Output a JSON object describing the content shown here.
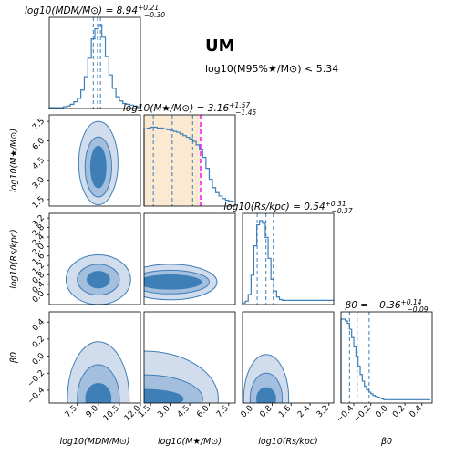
{
  "figure": {
    "label": "UM",
    "constraint": "log10(M95%★/M⊙) < 5.34"
  },
  "colors": {
    "line": "#3d7fb8",
    "fill_light": "#d1dced",
    "fill_mid": "#a4bfde",
    "fill_dark": "#3f7fb7",
    "prior_band": "#fbe9d1",
    "limit_line": "#ff00ff"
  },
  "chart_data": {
    "type": "corner",
    "parameters": [
      {
        "key": "mdm",
        "axis_label": "log10(MDM/M⊙)",
        "title_prefix": "log10(MDM/M⊙)",
        "median": "8.94",
        "err_plus": "+0.21",
        "err_minus": "−0.30",
        "range": [
          5.5,
          12.0
        ],
        "ticks": [
          7.5,
          9.0,
          10.5,
          12.0
        ],
        "tick_labels": [
          "7.5",
          "9.0",
          "10.5",
          "12.0"
        ],
        "quantiles": [
          8.64,
          8.94,
          9.15
        ],
        "hist": {
          "bin_width": 0.25,
          "counts": [
            0.01,
            0.01,
            0.01,
            0.01,
            0.02,
            0.03,
            0.05,
            0.08,
            0.12,
            0.22,
            0.38,
            0.6,
            0.83,
            0.95,
            1.0,
            0.85,
            0.62,
            0.4,
            0.24,
            0.14,
            0.09,
            0.06,
            0.05,
            0.04,
            0.03,
            0.02
          ]
        }
      },
      {
        "key": "mstar",
        "axis_label": "log10(M★/M⊙)",
        "title_prefix": "log10(M★/M⊙)",
        "median": "3.16",
        "err_plus": "+1.57",
        "err_minus": "−1.45",
        "range": [
          1.0,
          8.0
        ],
        "ticks": [
          1.5,
          3.0,
          4.5,
          6.0,
          7.5
        ],
        "tick_labels": [
          "1.5",
          "3.0",
          "4.5",
          "6.0",
          "7.5"
        ],
        "y_ticks": [
          1.5,
          3.0,
          4.5,
          6.0,
          7.5
        ],
        "y_tick_labels": [
          "1.5",
          "3.0",
          "4.5",
          "6.0",
          "7.5"
        ],
        "quantiles": [
          1.71,
          3.16,
          4.73
        ],
        "prior_band": [
          1.0,
          5.34
        ],
        "limit": 5.34,
        "hist": {
          "bin_width": 0.25,
          "counts": [
            0.92,
            0.93,
            0.94,
            0.94,
            0.93,
            0.93,
            0.92,
            0.91,
            0.9,
            0.89,
            0.88,
            0.86,
            0.84,
            0.82,
            0.8,
            0.77,
            0.73,
            0.68,
            0.58,
            0.45,
            0.32,
            0.22,
            0.16,
            0.12,
            0.09,
            0.07,
            0.06,
            0.05
          ]
        }
      },
      {
        "key": "rs",
        "axis_label": "log10(Rs/kpc)",
        "title_prefix": "log10(Rs/kpc)",
        "median": "0.54",
        "err_plus": "+0.31",
        "err_minus": "−0.37",
        "range": [
          -0.45,
          3.4
        ],
        "ticks": [
          0.0,
          0.4,
          0.8,
          1.2,
          1.6,
          2.0,
          2.4,
          2.8,
          3.2
        ],
        "tick_labels": [
          "0.0",
          "0.4",
          "0.8",
          "1.2",
          "1.6",
          "2.0",
          "2.4",
          "2.8",
          "3.2"
        ],
        "x_ticks": [
          0.0,
          0.8,
          1.6,
          2.4,
          3.2
        ],
        "x_tick_labels": [
          "0.0",
          "0.8",
          "1.6",
          "2.4",
          "3.2"
        ],
        "quantiles": [
          0.17,
          0.54,
          0.85
        ],
        "hist": {
          "bin_width": 0.12,
          "counts": [
            0.02,
            0.04,
            0.12,
            0.35,
            0.7,
            0.95,
            1.0,
            0.97,
            0.8,
            0.55,
            0.3,
            0.16,
            0.09,
            0.06,
            0.05,
            0.05,
            0.05,
            0.05,
            0.05,
            0.05,
            0.05,
            0.05,
            0.05,
            0.05,
            0.05,
            0.05,
            0.05,
            0.05,
            0.05,
            0.05,
            0.05,
            0.05
          ]
        }
      },
      {
        "key": "beta",
        "axis_label": "β0",
        "title_prefix": "β0",
        "median": "−0.36",
        "err_plus": "+0.14",
        "err_minus": "−0.09",
        "range": [
          -0.55,
          0.52
        ],
        "ticks": [
          -0.4,
          -0.2,
          0.0,
          0.2,
          0.4
        ],
        "tick_labels": [
          "−0.4",
          "−0.2",
          "0.0",
          "0.2",
          "0.4"
        ],
        "quantiles": [
          -0.45,
          -0.36,
          -0.22
        ],
        "hist": {
          "bin_width": 0.025,
          "counts": [
            1.0,
            1.0,
            0.98,
            0.95,
            0.88,
            0.78,
            0.67,
            0.56,
            0.44,
            0.34,
            0.26,
            0.2,
            0.16,
            0.13,
            0.11,
            0.09,
            0.08,
            0.07,
            0.06,
            0.05,
            0.04,
            0.04,
            0.04,
            0.04,
            0.04,
            0.04,
            0.04,
            0.04,
            0.04,
            0.04,
            0.04,
            0.04,
            0.04,
            0.04,
            0.04,
            0.04,
            0.04,
            0.04,
            0.04,
            0.04,
            0.04,
            0.04
          ]
        }
      }
    ],
    "contours": [
      {
        "row": 1,
        "col": 0,
        "cx": 9.0,
        "cy": 4.0,
        "levels": [
          [
            1.4,
            3.2
          ],
          [
            0.95,
            2.3
          ],
          [
            0.55,
            1.6
          ]
        ],
        "shift": [
          0,
          0.3
        ]
      },
      {
        "row": 2,
        "col": 0,
        "cx": 9.0,
        "cy": 0.6,
        "levels": [
          [
            2.3,
            1.05
          ],
          [
            1.5,
            0.65
          ],
          [
            0.8,
            0.35
          ]
        ],
        "shift": [
          0,
          0
        ]
      },
      {
        "row": 2,
        "col": 1,
        "cx": 3.0,
        "cy": 0.5,
        "levels": [
          [
            3.6,
            0.75
          ],
          [
            3.0,
            0.5
          ],
          [
            2.4,
            0.3
          ]
        ],
        "shift": [
          0,
          0
        ],
        "flat_left": true
      },
      {
        "row": 3,
        "col": 0,
        "cx": 9.0,
        "cy": -0.5,
        "levels": [
          [
            2.2,
            0.67
          ],
          [
            1.5,
            0.4
          ],
          [
            0.9,
            0.18
          ]
        ],
        "shift": [
          0,
          0
        ]
      },
      {
        "row": 3,
        "col": 1,
        "cx": 1.0,
        "cy": -0.5,
        "levels": [
          [
            5.7,
            0.56
          ],
          [
            4.5,
            0.28
          ],
          [
            3.0,
            0.11
          ]
        ],
        "shift": [
          0,
          0
        ]
      },
      {
        "row": 3,
        "col": 2,
        "cx": 0.55,
        "cy": -0.5,
        "levels": [
          [
            0.95,
            0.52
          ],
          [
            0.68,
            0.3
          ],
          [
            0.4,
            0.13
          ]
        ],
        "shift": [
          0,
          0
        ]
      }
    ]
  }
}
